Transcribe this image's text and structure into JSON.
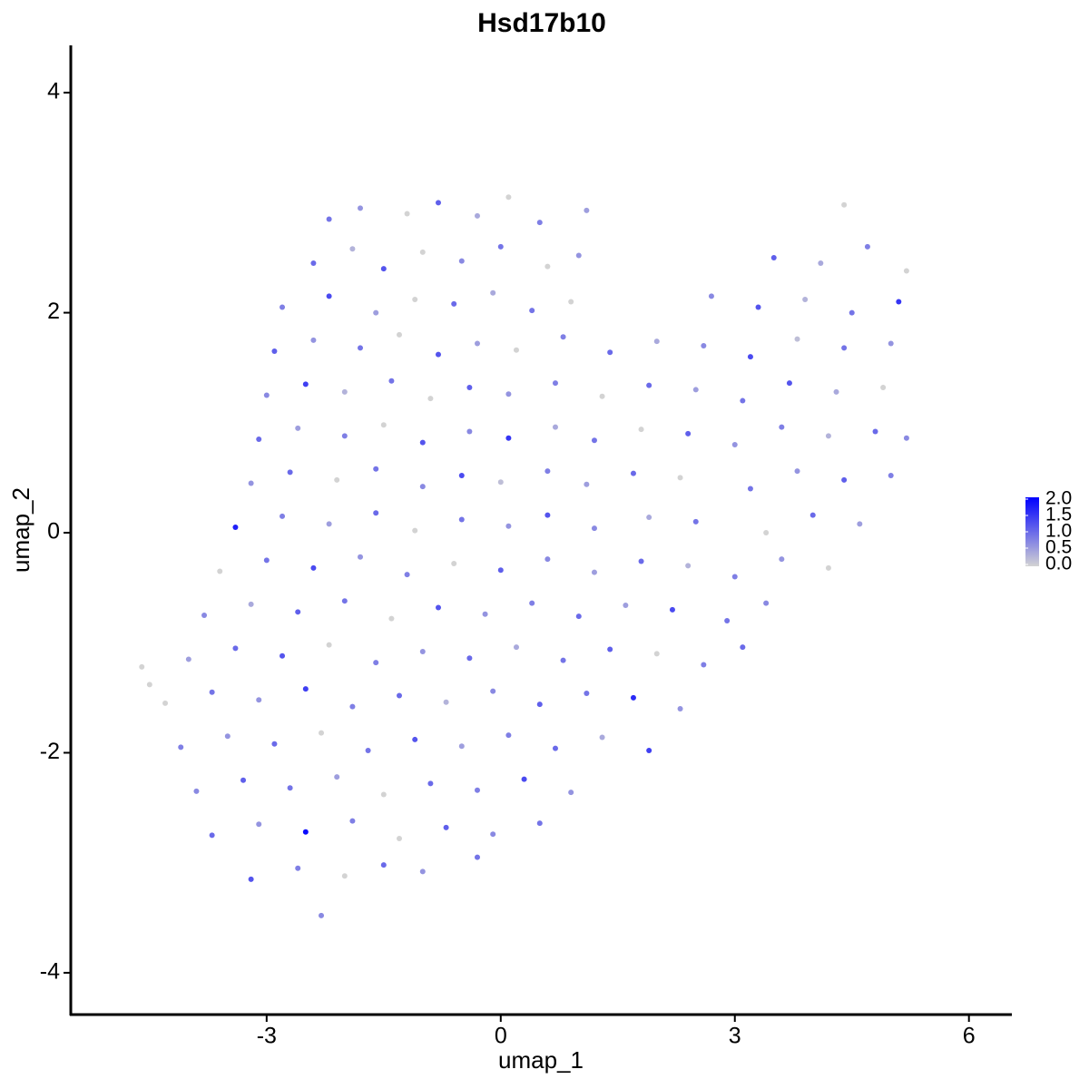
{
  "chart_data": {
    "type": "scatter",
    "title": "Hsd17b10",
    "x_label": "umap_1",
    "y_label": "umap_2",
    "xlim": [
      -5.51,
      6.55
    ],
    "ylim": [
      -4.38,
      4.43
    ],
    "xticks": [
      -3,
      0,
      3,
      6
    ],
    "yticks": [
      -4,
      -2,
      0,
      2,
      4
    ],
    "color_low": "#d3d3d3",
    "color_high": "#0000ff",
    "color_lim": [
      0,
      2
    ],
    "color_ticks": [
      {
        "value": 2,
        "label": "2.0"
      },
      {
        "value": 1.5,
        "label": "1.5"
      },
      {
        "value": 1,
        "label": "1.0"
      },
      {
        "value": 0.5,
        "label": "0.5"
      },
      {
        "value": 0,
        "label": "0.0"
      }
    ],
    "x": [
      -2.2,
      -1.8,
      -1.2,
      -0.8,
      -0.3,
      0.1,
      0.5,
      1.1,
      4.4,
      -2.4,
      -1.9,
      -1.5,
      -1.0,
      -0.5,
      0.0,
      0.6,
      1.0,
      3.5,
      4.1,
      4.7,
      5.2,
      -2.8,
      -2.2,
      -1.6,
      -1.1,
      -0.6,
      -0.1,
      0.4,
      0.9,
      2.7,
      3.3,
      3.9,
      4.5,
      5.1,
      -2.9,
      -2.4,
      -1.8,
      -1.3,
      -0.8,
      -0.3,
      0.2,
      0.8,
      1.4,
      2.0,
      2.6,
      3.2,
      3.8,
      4.4,
      5.0,
      -3.0,
      -2.5,
      -2.0,
      -1.4,
      -0.9,
      -0.4,
      0.1,
      0.7,
      1.3,
      1.9,
      2.5,
      3.1,
      3.7,
      4.3,
      4.9,
      -3.1,
      -2.6,
      -2.0,
      -1.5,
      -1.0,
      -0.4,
      0.1,
      0.7,
      1.2,
      1.8,
      2.4,
      3.0,
      3.6,
      4.2,
      4.8,
      5.2,
      -3.2,
      -2.7,
      -2.1,
      -1.6,
      -1.0,
      -0.5,
      0.0,
      0.6,
      1.1,
      1.7,
      2.3,
      3.2,
      3.8,
      4.4,
      5.0,
      -3.4,
      -2.8,
      -2.2,
      -1.6,
      -1.1,
      -0.5,
      0.1,
      0.6,
      1.2,
      1.9,
      2.5,
      3.4,
      4.0,
      4.6,
      -3.6,
      -3.0,
      -2.4,
      -1.8,
      -1.2,
      -0.6,
      0.0,
      0.6,
      1.2,
      1.8,
      2.4,
      3.0,
      3.6,
      4.2,
      -3.8,
      -3.2,
      -2.6,
      -2.0,
      -1.4,
      -0.8,
      -0.2,
      0.4,
      1.0,
      1.6,
      2.2,
      2.9,
      3.4,
      -4.0,
      -3.4,
      -2.8,
      -2.2,
      -1.6,
      -1.0,
      -0.4,
      0.2,
      0.8,
      1.4,
      2.0,
      2.6,
      3.1,
      -4.3,
      -3.7,
      -3.1,
      -2.5,
      -1.9,
      -1.3,
      -0.7,
      -0.1,
      0.5,
      1.1,
      1.7,
      2.3,
      -4.1,
      -3.5,
      -2.9,
      -2.3,
      -1.7,
      -1.1,
      -0.5,
      0.1,
      0.7,
      1.3,
      1.9,
      -3.9,
      -3.3,
      -2.7,
      -2.1,
      -1.5,
      -0.9,
      -0.3,
      0.3,
      0.9,
      -3.7,
      -3.1,
      -2.5,
      -1.9,
      -1.3,
      -0.7,
      -0.1,
      0.5,
      -3.2,
      -2.6,
      -2.0,
      -1.5,
      -1.0,
      -0.3,
      -4.6,
      -4.5,
      -2.3
    ],
    "y": [
      2.85,
      2.95,
      2.9,
      3.0,
      2.88,
      3.05,
      2.82,
      2.93,
      2.98,
      2.45,
      2.58,
      2.4,
      2.55,
      2.47,
      2.6,
      2.42,
      2.52,
      2.5,
      2.45,
      2.6,
      2.38,
      2.05,
      2.15,
      2.0,
      2.12,
      2.08,
      2.18,
      2.02,
      2.1,
      2.15,
      2.05,
      2.12,
      2.0,
      2.1,
      1.65,
      1.75,
      1.68,
      1.8,
      1.62,
      1.72,
      1.66,
      1.78,
      1.64,
      1.74,
      1.7,
      1.6,
      1.76,
      1.68,
      1.72,
      1.25,
      1.35,
      1.28,
      1.38,
      1.22,
      1.32,
      1.26,
      1.36,
      1.24,
      1.34,
      1.3,
      1.2,
      1.36,
      1.28,
      1.32,
      0.85,
      0.95,
      0.88,
      0.98,
      0.82,
      0.92,
      0.86,
      0.96,
      0.84,
      0.94,
      0.9,
      0.8,
      0.96,
      0.88,
      0.92,
      0.86,
      0.45,
      0.55,
      0.48,
      0.58,
      0.42,
      0.52,
      0.46,
      0.56,
      0.44,
      0.54,
      0.5,
      0.4,
      0.56,
      0.48,
      0.52,
      0.05,
      0.15,
      0.08,
      0.18,
      0.02,
      0.12,
      0.06,
      0.16,
      0.04,
      0.14,
      0.1,
      0.0,
      0.16,
      0.08,
      -0.35,
      -0.25,
      -0.32,
      -0.22,
      -0.38,
      -0.28,
      -0.34,
      -0.24,
      -0.36,
      -0.26,
      -0.3,
      -0.4,
      -0.24,
      -0.32,
      -0.75,
      -0.65,
      -0.72,
      -0.62,
      -0.78,
      -0.68,
      -0.74,
      -0.64,
      -0.76,
      -0.66,
      -0.7,
      -0.8,
      -0.64,
      -1.15,
      -1.05,
      -1.12,
      -1.02,
      -1.18,
      -1.08,
      -1.14,
      -1.04,
      -1.16,
      -1.06,
      -1.1,
      -1.2,
      -1.04,
      -1.55,
      -1.45,
      -1.52,
      -1.42,
      -1.58,
      -1.48,
      -1.54,
      -1.44,
      -1.56,
      -1.46,
      -1.5,
      -1.6,
      -1.95,
      -1.85,
      -1.92,
      -1.82,
      -1.98,
      -1.88,
      -1.94,
      -1.84,
      -1.96,
      -1.86,
      -1.98,
      -2.35,
      -2.25,
      -2.32,
      -2.22,
      -2.38,
      -2.28,
      -2.34,
      -2.24,
      -2.36,
      -2.75,
      -2.65,
      -2.72,
      -2.62,
      -2.78,
      -2.68,
      -2.74,
      -2.64,
      -3.15,
      -3.05,
      -3.12,
      -3.02,
      -3.08,
      -2.95,
      -1.22,
      -1.38,
      -3.48
    ],
    "values": [
      0.9,
      0.6,
      0.0,
      1.1,
      0.4,
      0.0,
      0.8,
      0.5,
      0.0,
      1.0,
      0.3,
      1.2,
      0.0,
      0.7,
      0.9,
      0.0,
      0.6,
      1.1,
      0.4,
      0.8,
      0.0,
      0.8,
      1.3,
      0.5,
      0.0,
      1.0,
      0.4,
      0.9,
      0.0,
      0.7,
      1.2,
      0.3,
      0.9,
      1.5,
      1.1,
      0.6,
      0.9,
      0.0,
      1.2,
      0.5,
      0.0,
      0.8,
      1.0,
      0.4,
      0.7,
      1.3,
      0.2,
      0.9,
      0.6,
      0.7,
      1.4,
      0.3,
      0.9,
      0.0,
      1.1,
      0.6,
      0.8,
      0.0,
      1.0,
      0.5,
      0.9,
      1.2,
      0.4,
      0.0,
      1.0,
      0.5,
      0.8,
      0.0,
      1.2,
      0.7,
      1.5,
      0.4,
      0.9,
      0.0,
      1.1,
      0.6,
      0.8,
      0.3,
      1.0,
      0.7,
      0.6,
      1.0,
      0.0,
      0.9,
      0.7,
      1.3,
      0.2,
      0.8,
      0.5,
      1.0,
      0.0,
      0.9,
      0.6,
      1.1,
      0.8,
      1.7,
      0.8,
      0.5,
      1.0,
      0.0,
      0.9,
      0.6,
      1.2,
      0.7,
      0.4,
      0.9,
      0.0,
      1.0,
      0.5,
      0.0,
      0.9,
      1.3,
      0.6,
      0.8,
      0.0,
      1.1,
      0.7,
      0.5,
      1.0,
      0.3,
      0.8,
      0.6,
      0.0,
      0.7,
      0.4,
      1.1,
      0.9,
      0.0,
      1.2,
      0.6,
      0.8,
      1.0,
      0.5,
      1.3,
      0.9,
      0.7,
      0.5,
      1.0,
      1.2,
      0.0,
      0.8,
      0.6,
      1.0,
      0.4,
      0.9,
      1.1,
      0.0,
      0.8,
      1.0,
      0.0,
      0.9,
      0.6,
      1.4,
      0.8,
      1.0,
      0.3,
      0.7,
      1.1,
      0.9,
      1.6,
      0.6,
      0.8,
      0.6,
      1.0,
      0.0,
      0.9,
      1.2,
      0.5,
      0.8,
      1.0,
      0.4,
      1.4,
      0.7,
      1.1,
      0.9,
      0.5,
      0.0,
      1.0,
      0.8,
      1.3,
      0.6,
      1.0,
      0.6,
      1.9,
      0.8,
      0.0,
      1.1,
      0.7,
      0.9,
      1.2,
      0.8,
      0.0,
      1.0,
      0.6,
      0.9,
      0.0,
      0.0,
      0.7
    ]
  }
}
